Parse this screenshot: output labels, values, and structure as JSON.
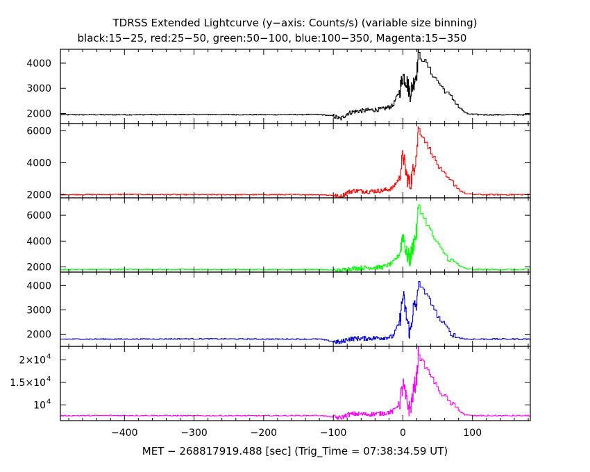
{
  "chart_data": {
    "type": "line",
    "title": "TDRSS Extended Lightcurve (y−axis: Counts/s) (variable size binning)",
    "subtitle": "black:15−25, red:25−50, green:50−100, blue:100−350, Magenta:15−350",
    "xlabel": "MET − 268817919.488 [sec] (Trig_Time = 07:38:34.59 UT)",
    "xlim": [
      -492,
      183
    ],
    "x_ticks": [
      {
        "value": -400,
        "label": "−400"
      },
      {
        "value": -300,
        "label": "−300"
      },
      {
        "value": -200,
        "label": "−200"
      },
      {
        "value": -100,
        "label": "−100"
      },
      {
        "value": 0,
        "label": "0"
      },
      {
        "value": 100,
        "label": "100"
      }
    ],
    "grid": false,
    "panels": [
      {
        "name": "black:15−25",
        "color": "#000000",
        "ylim": [
          1600,
          4550
        ],
        "y_ticks": [
          {
            "value": 2000,
            "label": "2000"
          },
          {
            "value": 3000,
            "label": "3000"
          },
          {
            "value": 4000,
            "label": "4000"
          }
        ],
        "x": [
          -492,
          -400,
          -300,
          -200,
          -120,
          -100,
          -90,
          -80,
          -70,
          -50,
          -30,
          -15,
          -5,
          0,
          5,
          10,
          15,
          20,
          22,
          25,
          30,
          35,
          40,
          45,
          50,
          55,
          60,
          65,
          70,
          75,
          80,
          90,
          100,
          120,
          150,
          183
        ],
        "y": [
          1950,
          1950,
          1960,
          1950,
          1960,
          1900,
          1780,
          2000,
          2080,
          2130,
          2170,
          2300,
          2900,
          3500,
          3300,
          2800,
          3200,
          3700,
          4380,
          4200,
          4100,
          3900,
          3600,
          3450,
          3250,
          3050,
          2900,
          2750,
          2600,
          2450,
          2250,
          2000,
          1960,
          1950,
          1950,
          1950
        ]
      },
      {
        "name": "red:25−50",
        "color": "#ff0000",
        "ylim": [
          1800,
          6450
        ],
        "y_ticks": [
          {
            "value": 2000,
            "label": "2000"
          },
          {
            "value": 4000,
            "label": "4000"
          },
          {
            "value": 6000,
            "label": "6000"
          }
        ],
        "x": [
          -492,
          -400,
          -300,
          -200,
          -120,
          -100,
          -90,
          -80,
          -70,
          -50,
          -30,
          -15,
          -5,
          0,
          5,
          10,
          15,
          20,
          22,
          25,
          30,
          35,
          40,
          45,
          50,
          55,
          60,
          65,
          70,
          75,
          80,
          90,
          100,
          120,
          150,
          183
        ],
        "y": [
          2000,
          2010,
          2000,
          2000,
          2000,
          1950,
          1850,
          2150,
          2250,
          2200,
          2250,
          2400,
          3100,
          4500,
          3200,
          2600,
          3600,
          4700,
          6300,
          5800,
          5500,
          5000,
          4700,
          4200,
          3800,
          3400,
          3200,
          2900,
          2800,
          2600,
          2300,
          2050,
          2010,
          2000,
          2000,
          2000
        ]
      },
      {
        "name": "green:50−100",
        "color": "#00ff00",
        "ylim": [
          1600,
          7350
        ],
        "y_ticks": [
          {
            "value": 2000,
            "label": "2000"
          },
          {
            "value": 4000,
            "label": "4000"
          },
          {
            "value": 6000,
            "label": "6000"
          }
        ],
        "x": [
          -492,
          -400,
          -300,
          -200,
          -120,
          -100,
          -90,
          -80,
          -70,
          -50,
          -30,
          -15,
          -5,
          0,
          5,
          10,
          15,
          20,
          22,
          25,
          30,
          35,
          40,
          45,
          50,
          55,
          60,
          65,
          70,
          75,
          80,
          90,
          100,
          120,
          150,
          183
        ],
        "y": [
          1800,
          1810,
          1800,
          1800,
          1800,
          1750,
          1700,
          1850,
          1900,
          1950,
          1980,
          2300,
          3000,
          4600,
          3000,
          2600,
          3800,
          4800,
          6900,
          6200,
          5800,
          5200,
          4700,
          4100,
          3700,
          3300,
          3000,
          2600,
          2500,
          2300,
          2100,
          1850,
          1800,
          1800,
          1800,
          1800
        ]
      },
      {
        "name": "blue:100−350",
        "color": "#0000cc",
        "ylim": [
          1500,
          4550
        ],
        "y_ticks": [
          {
            "value": 2000,
            "label": "2000"
          },
          {
            "value": 3000,
            "label": "3000"
          },
          {
            "value": 4000,
            "label": "4000"
          }
        ],
        "x": [
          -492,
          -400,
          -300,
          -200,
          -120,
          -100,
          -90,
          -80,
          -70,
          -50,
          -30,
          -15,
          -5,
          0,
          5,
          10,
          15,
          20,
          22,
          25,
          30,
          35,
          40,
          45,
          50,
          55,
          60,
          65,
          70,
          75,
          80,
          90,
          100,
          120,
          150,
          183
        ],
        "y": [
          1800,
          1800,
          1810,
          1800,
          1800,
          1700,
          1660,
          1800,
          1820,
          1830,
          1850,
          1900,
          2500,
          3600,
          2700,
          2000,
          3100,
          3200,
          4250,
          3900,
          3750,
          3500,
          3300,
          3000,
          2700,
          2500,
          2350,
          2150,
          2000,
          1900,
          1850,
          1800,
          1800,
          1800,
          1800,
          1800
        ]
      },
      {
        "name": "Magenta:15−350",
        "color": "#ff00ff",
        "ylim": [
          6500,
          23000
        ],
        "y_ticks": [
          {
            "value": 10000,
            "label": "10",
            "exp": "4"
          },
          {
            "value": 15000,
            "label": "1.5×10",
            "exp": "4"
          },
          {
            "value": 20000,
            "label": "2×10",
            "exp": "4"
          }
        ],
        "x": [
          -492,
          -400,
          -300,
          -200,
          -120,
          -100,
          -90,
          -80,
          -70,
          -50,
          -30,
          -15,
          -5,
          0,
          5,
          10,
          15,
          20,
          22,
          25,
          30,
          35,
          40,
          45,
          50,
          55,
          60,
          65,
          70,
          75,
          80,
          90,
          100,
          120,
          150,
          183
        ],
        "y": [
          7600,
          7650,
          7600,
          7600,
          7650,
          7300,
          7100,
          7800,
          8000,
          7900,
          8100,
          8500,
          10500,
          14500,
          10800,
          8800,
          13000,
          16500,
          21800,
          20000,
          19000,
          17500,
          16500,
          14800,
          13500,
          12500,
          11800,
          10800,
          10200,
          9500,
          8700,
          7700,
          7600,
          7600,
          7600,
          7600
        ]
      }
    ]
  }
}
